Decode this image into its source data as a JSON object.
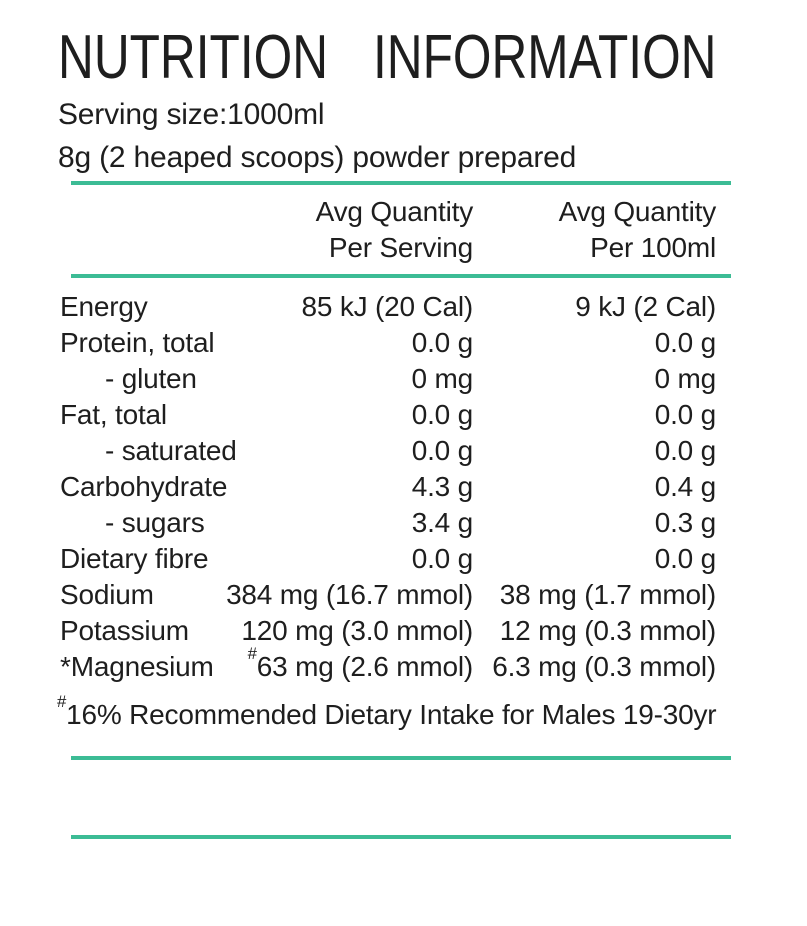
{
  "title": "NUTRITION INFORMATION",
  "serving": {
    "size_line": "Serving size:1000ml",
    "prep_line": "8g (2 heaped scoops) powder prepared"
  },
  "table": {
    "col_headers": [
      {
        "line1": "Avg Quantity",
        "line2": "Per Serving"
      },
      {
        "line1": "Avg Quantity",
        "line2": "Per 100ml"
      }
    ],
    "rows": [
      {
        "label": "Energy",
        "indent": false,
        "per_serving": "85 kJ (20 Cal)",
        "per_100ml": "9 kJ (2 Cal)"
      },
      {
        "label": "Protein, total",
        "indent": false,
        "per_serving": "0.0 g",
        "per_100ml": "0.0 g"
      },
      {
        "label": "- gluten",
        "indent": true,
        "per_serving": "0 mg",
        "per_100ml": "0 mg"
      },
      {
        "label": "Fat, total",
        "indent": false,
        "per_serving": "0.0 g",
        "per_100ml": "0.0 g"
      },
      {
        "label": "- saturated",
        "indent": true,
        "per_serving": "0.0 g",
        "per_100ml": "0.0 g"
      },
      {
        "label": "Carbohydrate",
        "indent": false,
        "per_serving": "4.3 g",
        "per_100ml": "0.4 g"
      },
      {
        "label": "- sugars",
        "indent": true,
        "per_serving": "3.4 g",
        "per_100ml": "0.3 g"
      },
      {
        "label": "Dietary fibre",
        "indent": false,
        "per_serving": "0.0 g",
        "per_100ml": "0.0 g"
      },
      {
        "label": "Sodium",
        "indent": false,
        "per_serving": "384 mg (16.7 mmol)",
        "per_100ml": "38 mg (1.7 mmol)"
      },
      {
        "label": "Potassium",
        "indent": false,
        "per_serving": "120 mg (3.0 mmol)",
        "per_100ml": "12 mg (0.3 mmol)"
      },
      {
        "label": "*Magnesium",
        "indent": false,
        "per_serving_sup": "#",
        "per_serving": "63 mg (2.6 mmol)",
        "per_100ml": "6.3 mg (0.3 mmol)"
      }
    ]
  },
  "footnote": {
    "sup": "#",
    "text": "16% Recommended Dietary Intake for Males 19-30yr"
  },
  "colors": {
    "accent_line": "#3cbc95",
    "text": "#1e1e1e",
    "background": "#ffffff"
  }
}
